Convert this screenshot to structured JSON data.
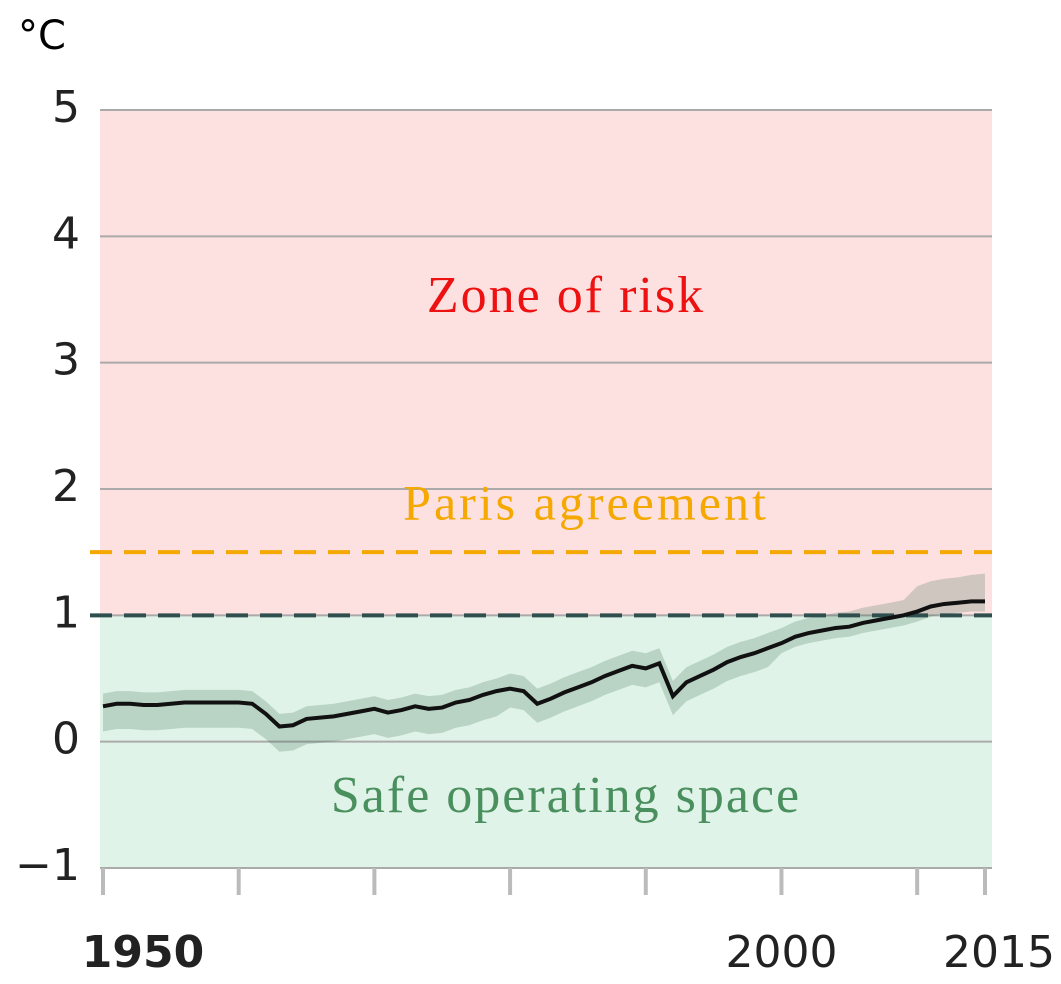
{
  "chart_data": {
    "type": "line",
    "y_unit": "°C",
    "x": [
      1950,
      1951,
      1952,
      1953,
      1954,
      1955,
      1956,
      1957,
      1958,
      1959,
      1960,
      1961,
      1962,
      1963,
      1964,
      1965,
      1966,
      1967,
      1968,
      1969,
      1970,
      1971,
      1972,
      1973,
      1974,
      1975,
      1976,
      1977,
      1978,
      1979,
      1980,
      1981,
      1982,
      1983,
      1984,
      1985,
      1986,
      1987,
      1988,
      1989,
      1990,
      1991,
      1992,
      1993,
      1994,
      1995,
      1996,
      1997,
      1998,
      1999,
      2000,
      2001,
      2002,
      2003,
      2004,
      2005,
      2006,
      2007,
      2008,
      2009,
      2010,
      2011,
      2012,
      2013,
      2014,
      2015
    ],
    "values": [
      0.28,
      0.3,
      0.3,
      0.29,
      0.29,
      0.3,
      0.31,
      0.31,
      0.31,
      0.31,
      0.31,
      0.3,
      0.22,
      0.12,
      0.13,
      0.18,
      0.19,
      0.2,
      0.22,
      0.24,
      0.26,
      0.23,
      0.25,
      0.28,
      0.26,
      0.27,
      0.31,
      0.33,
      0.37,
      0.4,
      0.42,
      0.4,
      0.3,
      0.34,
      0.39,
      0.43,
      0.47,
      0.52,
      0.56,
      0.6,
      0.58,
      0.62,
      0.36,
      0.47,
      0.52,
      0.57,
      0.63,
      0.67,
      0.7,
      0.74,
      0.78,
      0.83,
      0.86,
      0.88,
      0.9,
      0.91,
      0.94,
      0.96,
      0.98,
      1.0,
      1.03,
      1.07,
      1.09,
      1.1,
      1.11,
      1.11
    ],
    "band_low": [
      0.08,
      0.1,
      0.1,
      0.09,
      0.09,
      0.1,
      0.11,
      0.11,
      0.11,
      0.11,
      0.11,
      0.1,
      0.02,
      -0.08,
      -0.07,
      -0.02,
      -0.01,
      0.0,
      0.02,
      0.04,
      0.06,
      0.03,
      0.05,
      0.08,
      0.06,
      0.07,
      0.11,
      0.13,
      0.17,
      0.2,
      0.27,
      0.25,
      0.15,
      0.19,
      0.24,
      0.28,
      0.32,
      0.37,
      0.41,
      0.45,
      0.43,
      0.47,
      0.21,
      0.32,
      0.37,
      0.42,
      0.48,
      0.52,
      0.55,
      0.59,
      0.7,
      0.75,
      0.78,
      0.8,
      0.82,
      0.83,
      0.86,
      0.88,
      0.9,
      0.92,
      0.95,
      0.99,
      1.01,
      1.02,
      1.03,
      1.03
    ],
    "band_high": [
      0.38,
      0.4,
      0.4,
      0.39,
      0.39,
      0.4,
      0.41,
      0.41,
      0.41,
      0.41,
      0.41,
      0.4,
      0.32,
      0.22,
      0.23,
      0.28,
      0.29,
      0.3,
      0.32,
      0.34,
      0.36,
      0.33,
      0.35,
      0.38,
      0.36,
      0.37,
      0.41,
      0.43,
      0.47,
      0.5,
      0.54,
      0.52,
      0.42,
      0.46,
      0.51,
      0.55,
      0.59,
      0.64,
      0.68,
      0.72,
      0.7,
      0.74,
      0.48,
      0.59,
      0.64,
      0.69,
      0.75,
      0.79,
      0.82,
      0.86,
      0.9,
      0.95,
      0.98,
      1.0,
      1.02,
      1.03,
      1.06,
      1.08,
      1.1,
      1.12,
      1.23,
      1.27,
      1.29,
      1.3,
      1.32,
      1.33
    ],
    "color": "#111111",
    "band_color": "#2e6b4a",
    "xlim": [
      1950,
      2015
    ],
    "xticks": [
      1950,
      2000,
      2015
    ],
    "minor_xticks": [
      1960,
      1970,
      1980,
      1990,
      2010
    ],
    "ylim": [
      -1,
      5
    ],
    "yticks": [
      {
        "value": -1,
        "label": "−1"
      },
      0,
      1,
      2,
      3,
      4,
      5
    ],
    "grid": true,
    "zones": [
      {
        "label": "Zone of risk",
        "from": 1,
        "to": 5,
        "color": "#fde0e0",
        "text_color": "#ee1111"
      },
      {
        "label": "Safe operating space",
        "from": -1,
        "to": 1,
        "color": "#e0f3e8",
        "text_color": "#4a8f5e"
      }
    ],
    "reference_lines": [
      {
        "label": "Paris agreement",
        "value": 1.5,
        "color": "#f5a800"
      },
      {
        "value": 1,
        "color": "#2f4f4f"
      }
    ]
  }
}
